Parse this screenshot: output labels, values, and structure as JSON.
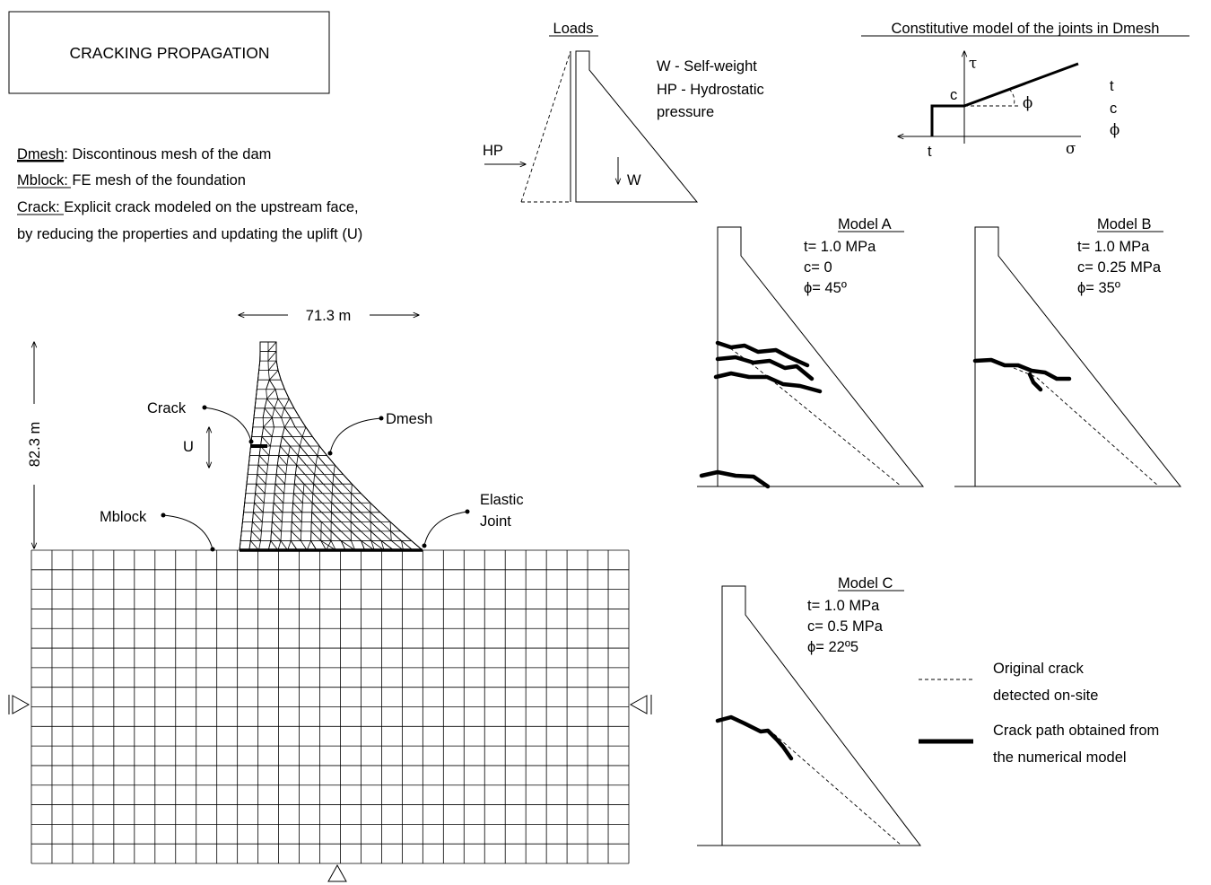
{
  "title": "CRACKING PROPAGATION",
  "definitions": {
    "dmesh_term": "Dmesh",
    "dmesh_text": ": Discontinous mesh of the dam",
    "mblock_term": "Mblock",
    "mblock_text": ": FE mesh of the foundation",
    "crack_term": "Crack",
    "crack_text": ": Explicit crack modeled on the upstream face,",
    "crack_text2": "by reducing the properties and updating the uplift (U)"
  },
  "loads": {
    "heading": "Loads",
    "w_label": "W - Self-weight",
    "hp_label": "HP - Hydrostatic",
    "hp_label2": "pressure",
    "hp_arrow": "HP",
    "w_arrow": "W"
  },
  "constitutive": {
    "heading": "Constitutive model of the joints in Dmesh",
    "tau": "τ",
    "sigma": "σ",
    "c": "c",
    "t": "t",
    "phi": "ϕ",
    "params": [
      "t",
      "c",
      "ϕ"
    ]
  },
  "main": {
    "width_label": "71.3 m",
    "height_label": "82.3 m",
    "crack": "Crack",
    "u": "U",
    "dmesh": "Dmesh",
    "mblock": "Mblock",
    "elastic1": "Elastic",
    "elastic2": "Joint"
  },
  "models": [
    {
      "name": "Model A",
      "t": "t= 1.0 MPa",
      "c": "c= 0",
      "phi": "ϕ= 45º"
    },
    {
      "name": "Model B",
      "t": "t= 1.0 MPa",
      "c": "c= 0.25 MPa",
      "phi": "ϕ= 35º"
    },
    {
      "name": "Model C",
      "t": "t= 1.0 MPa",
      "c": "c= 0.5 MPa",
      "phi": "ϕ= 22º5"
    }
  ],
  "legend": {
    "dashed1": "Original crack",
    "dashed2": "detected on-site",
    "solid1": "Crack path obtained from",
    "solid2": "the numerical model"
  }
}
